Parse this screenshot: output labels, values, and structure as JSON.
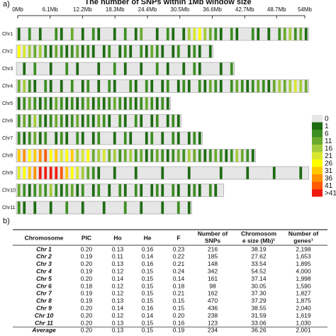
{
  "chart_data": {
    "type": "snp-density",
    "panel_a": "a)",
    "title": "The number of SNPs within 1Mb window size",
    "xlim": [
      0,
      54
    ],
    "xticks": [
      {
        "value": 0,
        "label": "0Mb"
      },
      {
        "value": 6.1,
        "label": "6.1Mb"
      },
      {
        "value": 12.2,
        "label": "12.2Mb"
      },
      {
        "value": 18.3,
        "label": "18.3Mb"
      },
      {
        "value": 24.4,
        "label": "24.4Mb"
      },
      {
        "value": 30.5,
        "label": "30.5Mb"
      },
      {
        "value": 36.6,
        "label": "36.6Mb"
      },
      {
        "value": 42.7,
        "label": "42.7Mb"
      },
      {
        "value": 48.7,
        "label": "48.7Mb"
      },
      {
        "value": 54,
        "label": "54Mb"
      }
    ],
    "legend": [
      {
        "label": 0,
        "color": "#e6e6e6"
      },
      {
        "label": 1,
        "color": "#1e6b12"
      },
      {
        "label": 6,
        "color": "#3d8f22"
      },
      {
        "label": 11,
        "color": "#6aaa2e"
      },
      {
        "label": 16,
        "color": "#a4cc3a"
      },
      {
        "label": 21,
        "color": "#d8e830"
      },
      {
        "label": 26,
        "color": "#ffff00"
      },
      {
        "label": 31,
        "color": "#ffc800"
      },
      {
        "label": 36,
        "color": "#ff9000"
      },
      {
        "label": 41,
        "color": "#ff5a00"
      },
      {
        "label": ">41",
        "color": "#ee1c10"
      }
    ],
    "series": [
      {
        "name": "Chr1",
        "values": [
          1,
          0,
          6,
          0,
          1,
          0,
          0,
          6,
          1,
          0,
          11,
          0,
          1,
          0,
          6,
          1,
          0,
          0,
          1,
          0,
          6,
          0,
          1,
          11,
          0,
          0,
          1,
          0,
          6,
          1,
          0,
          1,
          16,
          21,
          26,
          16,
          11,
          6,
          1,
          0,
          6,
          1,
          0,
          0,
          6,
          1,
          0,
          1,
          0,
          6,
          11,
          16,
          6,
          11,
          1
        ]
      },
      {
        "name": "Chr2",
        "values": [
          26,
          21,
          16,
          11,
          16,
          6,
          1,
          11,
          6,
          1,
          6,
          11,
          1,
          6,
          1,
          0,
          1,
          6,
          0,
          1,
          6,
          1,
          0,
          6,
          1,
          11,
          6,
          1,
          0,
          1,
          6,
          0,
          1,
          6,
          1,
          0,
          1
        ]
      },
      {
        "name": "Chr3",
        "values": [
          0,
          1,
          0,
          6,
          0,
          0,
          1,
          0,
          0,
          6,
          0,
          1,
          0,
          0,
          0,
          1,
          0,
          0,
          6,
          0,
          1,
          0,
          0,
          1,
          0,
          0,
          6,
          0,
          1,
          0,
          0,
          1,
          0,
          6,
          1,
          0,
          0,
          0,
          1,
          0,
          6
        ]
      },
      {
        "name": "Chr4",
        "values": [
          11,
          16,
          6,
          1,
          0,
          6,
          1,
          0,
          1,
          0,
          6,
          0,
          1,
          6,
          0,
          1,
          0,
          6,
          1,
          0,
          0,
          6,
          1,
          0,
          6,
          1,
          0,
          1,
          6,
          0,
          1,
          6,
          1,
          0,
          6,
          1,
          11,
          6,
          1,
          0,
          6,
          11,
          6,
          1,
          6,
          11,
          6,
          1,
          11,
          16,
          11,
          16,
          21,
          16,
          11
        ]
      },
      {
        "name": "Chr5",
        "values": [
          1,
          6,
          11,
          6,
          1,
          6,
          1,
          11,
          6,
          1,
          6,
          1,
          6,
          11,
          1,
          6,
          1,
          6,
          11,
          6,
          1,
          6,
          1,
          6,
          11,
          6,
          1,
          6,
          1
        ]
      },
      {
        "name": "Chr6",
        "values": [
          6,
          11,
          6,
          16,
          6,
          1,
          6,
          11,
          6,
          1,
          6,
          11,
          1,
          6,
          1,
          11,
          6,
          1,
          0,
          6,
          1,
          0,
          6,
          1,
          0,
          1,
          6,
          0,
          1,
          6,
          1
        ]
      },
      {
        "name": "Chr7",
        "values": [
          6,
          1,
          6,
          11,
          1,
          6,
          0,
          1,
          6,
          1,
          0,
          6,
          1,
          0,
          1,
          6,
          0,
          0,
          1,
          0,
          6,
          1,
          0,
          0,
          1,
          6,
          0,
          1,
          0,
          6,
          1,
          0,
          1,
          6,
          1
        ]
      },
      {
        "name": "Chr8",
        "values": [
          31,
          36,
          26,
          31,
          36,
          41,
          26,
          31,
          21,
          26,
          31,
          16,
          21,
          26,
          11,
          16,
          21,
          11,
          16,
          6,
          11,
          16,
          6,
          11,
          1,
          6,
          11,
          6,
          1,
          6,
          11,
          6,
          16,
          11,
          6,
          1,
          6,
          11,
          6,
          1,
          6,
          16,
          11,
          6,
          1
        ]
      },
      {
        "name": "Chr9",
        "values": [
          21,
          26,
          31,
          36,
          45,
          45,
          50,
          45,
          41,
          31,
          26,
          21,
          16,
          11,
          6,
          1,
          0,
          0,
          1,
          0,
          0,
          0,
          1,
          0,
          0,
          0,
          0,
          1,
          0,
          0,
          0,
          0,
          1,
          0,
          0,
          0,
          0,
          0,
          1,
          0,
          0,
          0,
          0,
          1,
          0,
          0,
          0,
          0,
          1,
          0,
          0,
          0,
          0,
          1,
          0
        ]
      },
      {
        "name": "Chr10",
        "values": [
          11,
          6,
          1,
          6,
          11,
          6,
          16,
          6,
          1,
          6,
          11,
          1,
          6,
          0,
          1,
          6,
          0,
          1,
          0,
          6,
          1,
          0,
          6,
          1,
          0,
          1,
          6,
          1,
          0,
          6,
          1,
          0,
          1,
          6,
          1,
          0,
          6,
          1,
          0
        ]
      },
      {
        "name": "Chr11",
        "values": [
          6,
          1,
          0,
          1,
          0,
          0,
          1,
          0,
          0,
          6,
          0,
          0,
          1,
          0,
          0,
          0,
          1,
          0,
          0,
          0,
          6,
          0,
          0,
          1,
          0,
          0,
          0,
          1,
          0,
          0,
          6,
          0,
          1
        ]
      }
    ]
  },
  "table": {
    "panel": "b)",
    "header": [
      [
        "Chromosome"
      ],
      [
        "PIC"
      ],
      [
        "Ho"
      ],
      [
        "He"
      ],
      [
        "F"
      ],
      [
        "Number of",
        "SNPs"
      ],
      [
        "Chromosom",
        "e size (Mb)¹"
      ],
      [
        "Number of",
        "genes¹"
      ]
    ],
    "rows": [
      [
        "Chr 1",
        "0.20",
        "0.13",
        "0.16",
        "0.23",
        "216",
        "38.19",
        "2,198"
      ],
      [
        "Chr 2",
        "0.19",
        "0.11",
        "0.14",
        "0.22",
        "185",
        "27.62",
        "1,653"
      ],
      [
        "Chr 3",
        "0.20",
        "0.13",
        "0.16",
        "0.21",
        "148",
        "33.54",
        "1,895"
      ],
      [
        "Chr 4",
        "0.19",
        "0.12",
        "0.15",
        "0.24",
        "342",
        "54.52",
        "4,000"
      ],
      [
        "Chr 5",
        "0.20",
        "0.14",
        "0.15",
        "0.14",
        "161",
        "37.14",
        "1,998"
      ],
      [
        "Chr 6",
        "0.18",
        "0.12",
        "0.15",
        "0.18",
        "98",
        "30.05",
        "1,590"
      ],
      [
        "Chr 7",
        "0.19",
        "0.12",
        "0.15",
        "0.21",
        "162",
        "37.30",
        "1,827"
      ],
      [
        "Chr 8",
        "0.19",
        "0.13",
        "0.15",
        "0.15",
        "470",
        "37.29",
        "1,875"
      ],
      [
        "Chr 9",
        "0.20",
        "0.14",
        "0.16",
        "0.15",
        "436",
        "38.55",
        "2,040"
      ],
      [
        "Chr 10",
        "0.20",
        "0.12",
        "0.14",
        "0.20",
        "238",
        "31.59",
        "1,619"
      ],
      [
        "Chr 11",
        "0.20",
        "0.13",
        "0.15",
        "0.16",
        "123",
        "33.06",
        "1,030"
      ],
      [
        "Average",
        "0.20",
        "0.13",
        "0.15",
        "0.19",
        "234",
        "36.26",
        "2,001"
      ]
    ]
  }
}
